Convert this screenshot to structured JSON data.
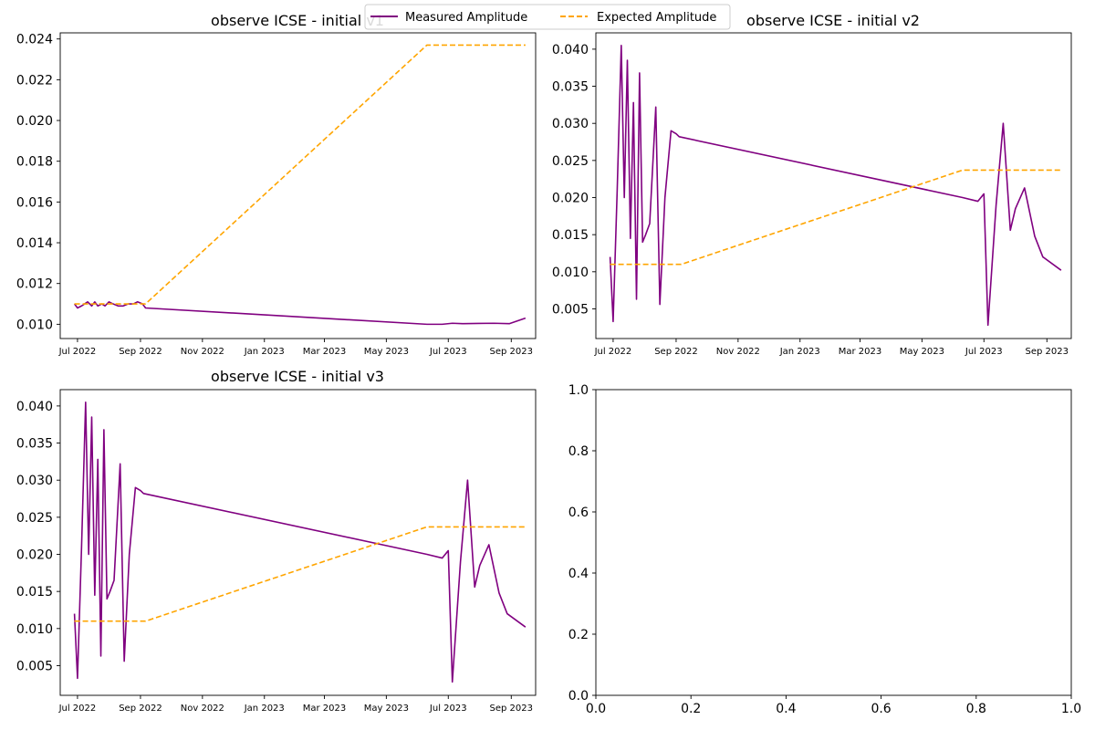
{
  "legend": {
    "entries": [
      {
        "label": "Measured Amplitude",
        "color": "#800080",
        "style": "solid"
      },
      {
        "label": "Expected Amplitude",
        "color": "#FFA500",
        "style": "dashed"
      }
    ],
    "placement": "top-center"
  },
  "chart_data": [
    {
      "type": "line",
      "title": "observe ICSE - initial v1",
      "x_axis": "date",
      "xticks": [
        "Jul 2022",
        "Sep 2022",
        "Nov 2022",
        "Jan 2023",
        "Mar 2023",
        "May 2023",
        "Jul 2023",
        "Sep 2023"
      ],
      "xlim": [
        "2022-06-14",
        "2023-09-25"
      ],
      "yticks": [
        "0.010",
        "0.012",
        "0.014",
        "0.016",
        "0.018",
        "0.020",
        "0.022",
        "0.024"
      ],
      "ylim": [
        0.0093,
        0.0243
      ],
      "series": [
        {
          "name": "Measured Amplitude",
          "color": "#800080",
          "style": "solid",
          "x": [
            "2022-06-28",
            "2022-07-01",
            "2022-07-05",
            "2022-07-08",
            "2022-07-11",
            "2022-07-15",
            "2022-07-18",
            "2022-07-21",
            "2022-07-25",
            "2022-07-28",
            "2022-08-01",
            "2022-08-05",
            "2022-08-10",
            "2022-08-15",
            "2022-08-20",
            "2022-08-25",
            "2022-08-29",
            "2022-09-03",
            "2022-09-06",
            "2023-06-10",
            "2023-06-25",
            "2023-07-05",
            "2023-07-15",
            "2023-07-30",
            "2023-08-15",
            "2023-08-30",
            "2023-09-15"
          ],
          "y": [
            0.011,
            0.0108,
            0.0109,
            0.011,
            0.0111,
            0.0109,
            0.0111,
            0.0109,
            0.011,
            0.0109,
            0.0111,
            0.011,
            0.0109,
            0.0109,
            0.011,
            0.011,
            0.0111,
            0.011,
            0.0108,
            0.01,
            0.01,
            0.01005,
            0.01003,
            0.01004,
            0.01005,
            0.01003,
            0.0103
          ]
        },
        {
          "name": "Expected Amplitude",
          "color": "#FFA500",
          "style": "dashed",
          "x": [
            "2022-06-28",
            "2022-09-06",
            "2023-06-10",
            "2023-09-15"
          ],
          "y": [
            0.011,
            0.011,
            0.0237,
            0.0237
          ]
        }
      ]
    },
    {
      "type": "line",
      "title": "observe ICSE - initial v2",
      "x_axis": "date",
      "xticks": [
        "Jul 2022",
        "Sep 2022",
        "Nov 2022",
        "Jan 2023",
        "Mar 2023",
        "May 2023",
        "Jul 2023",
        "Sep 2023"
      ],
      "xlim": [
        "2022-06-14",
        "2023-09-25"
      ],
      "yticks": [
        "0.005",
        "0.010",
        "0.015",
        "0.020",
        "0.025",
        "0.030",
        "0.035",
        "0.040"
      ],
      "ylim": [
        0.001,
        0.0422
      ],
      "series": [
        {
          "name": "Measured Amplitude",
          "color": "#800080",
          "style": "solid",
          "x": [
            "2022-06-28",
            "2022-07-01",
            "2022-07-05",
            "2022-07-09",
            "2022-07-12",
            "2022-07-15",
            "2022-07-18",
            "2022-07-21",
            "2022-07-24",
            "2022-07-27",
            "2022-07-30",
            "2022-08-02",
            "2022-08-06",
            "2022-08-12",
            "2022-08-16",
            "2022-08-21",
            "2022-08-27",
            "2022-09-01",
            "2022-09-04",
            "2023-06-10",
            "2023-06-25",
            "2023-07-01",
            "2023-07-05",
            "2023-07-13",
            "2023-07-20",
            "2023-07-27",
            "2023-08-01",
            "2023-08-10",
            "2023-08-20",
            "2023-08-28",
            "2023-09-15"
          ],
          "y": [
            0.012,
            0.0033,
            0.021,
            0.0405,
            0.02,
            0.0385,
            0.0145,
            0.0328,
            0.0063,
            0.0368,
            0.014,
            0.015,
            0.0165,
            0.0322,
            0.0056,
            0.02,
            0.029,
            0.0286,
            0.0282,
            0.02,
            0.0195,
            0.0205,
            0.0028,
            0.019,
            0.03,
            0.0156,
            0.0185,
            0.0213,
            0.0148,
            0.012,
            0.0102
          ]
        },
        {
          "name": "Expected Amplitude",
          "color": "#FFA500",
          "style": "dashed",
          "x": [
            "2022-06-28",
            "2022-09-06",
            "2023-06-10",
            "2023-09-15"
          ],
          "y": [
            0.011,
            0.011,
            0.0237,
            0.0237
          ]
        }
      ]
    },
    {
      "type": "line",
      "title": "observe ICSE - initial v3",
      "x_axis": "date",
      "xticks": [
        "Jul 2022",
        "Sep 2022",
        "Nov 2022",
        "Jan 2023",
        "Mar 2023",
        "May 2023",
        "Jul 2023",
        "Sep 2023"
      ],
      "xlim": [
        "2022-06-14",
        "2023-09-25"
      ],
      "yticks": [
        "0.005",
        "0.010",
        "0.015",
        "0.020",
        "0.025",
        "0.030",
        "0.035",
        "0.040"
      ],
      "ylim": [
        0.001,
        0.0422
      ],
      "series": [
        {
          "name": "Measured Amplitude",
          "color": "#800080",
          "style": "solid",
          "x": [
            "2022-06-28",
            "2022-07-01",
            "2022-07-05",
            "2022-07-09",
            "2022-07-12",
            "2022-07-15",
            "2022-07-18",
            "2022-07-21",
            "2022-07-24",
            "2022-07-27",
            "2022-07-30",
            "2022-08-02",
            "2022-08-06",
            "2022-08-12",
            "2022-08-16",
            "2022-08-21",
            "2022-08-27",
            "2022-09-01",
            "2022-09-04",
            "2023-06-10",
            "2023-06-25",
            "2023-07-01",
            "2023-07-05",
            "2023-07-13",
            "2023-07-20",
            "2023-07-27",
            "2023-08-01",
            "2023-08-10",
            "2023-08-20",
            "2023-08-28",
            "2023-09-15"
          ],
          "y": [
            0.012,
            0.0033,
            0.021,
            0.0405,
            0.02,
            0.0385,
            0.0145,
            0.0328,
            0.0063,
            0.0368,
            0.014,
            0.015,
            0.0165,
            0.0322,
            0.0056,
            0.02,
            0.029,
            0.0286,
            0.0282,
            0.02,
            0.0195,
            0.0205,
            0.0028,
            0.019,
            0.03,
            0.0156,
            0.0185,
            0.0213,
            0.0148,
            0.012,
            0.0102
          ]
        },
        {
          "name": "Expected Amplitude",
          "color": "#FFA500",
          "style": "dashed",
          "x": [
            "2022-06-28",
            "2022-09-06",
            "2023-06-10",
            "2023-09-15"
          ],
          "y": [
            0.011,
            0.011,
            0.0237,
            0.0237
          ]
        }
      ]
    },
    {
      "type": "line",
      "title": "",
      "x_axis": "numeric",
      "xticks": [
        "0.0",
        "0.2",
        "0.4",
        "0.6",
        "0.8",
        "1.0"
      ],
      "xlim": [
        0,
        1
      ],
      "yticks": [
        "0.0",
        "0.2",
        "0.4",
        "0.6",
        "0.8",
        "1.0"
      ],
      "ylim": [
        0,
        1
      ],
      "series": []
    }
  ]
}
